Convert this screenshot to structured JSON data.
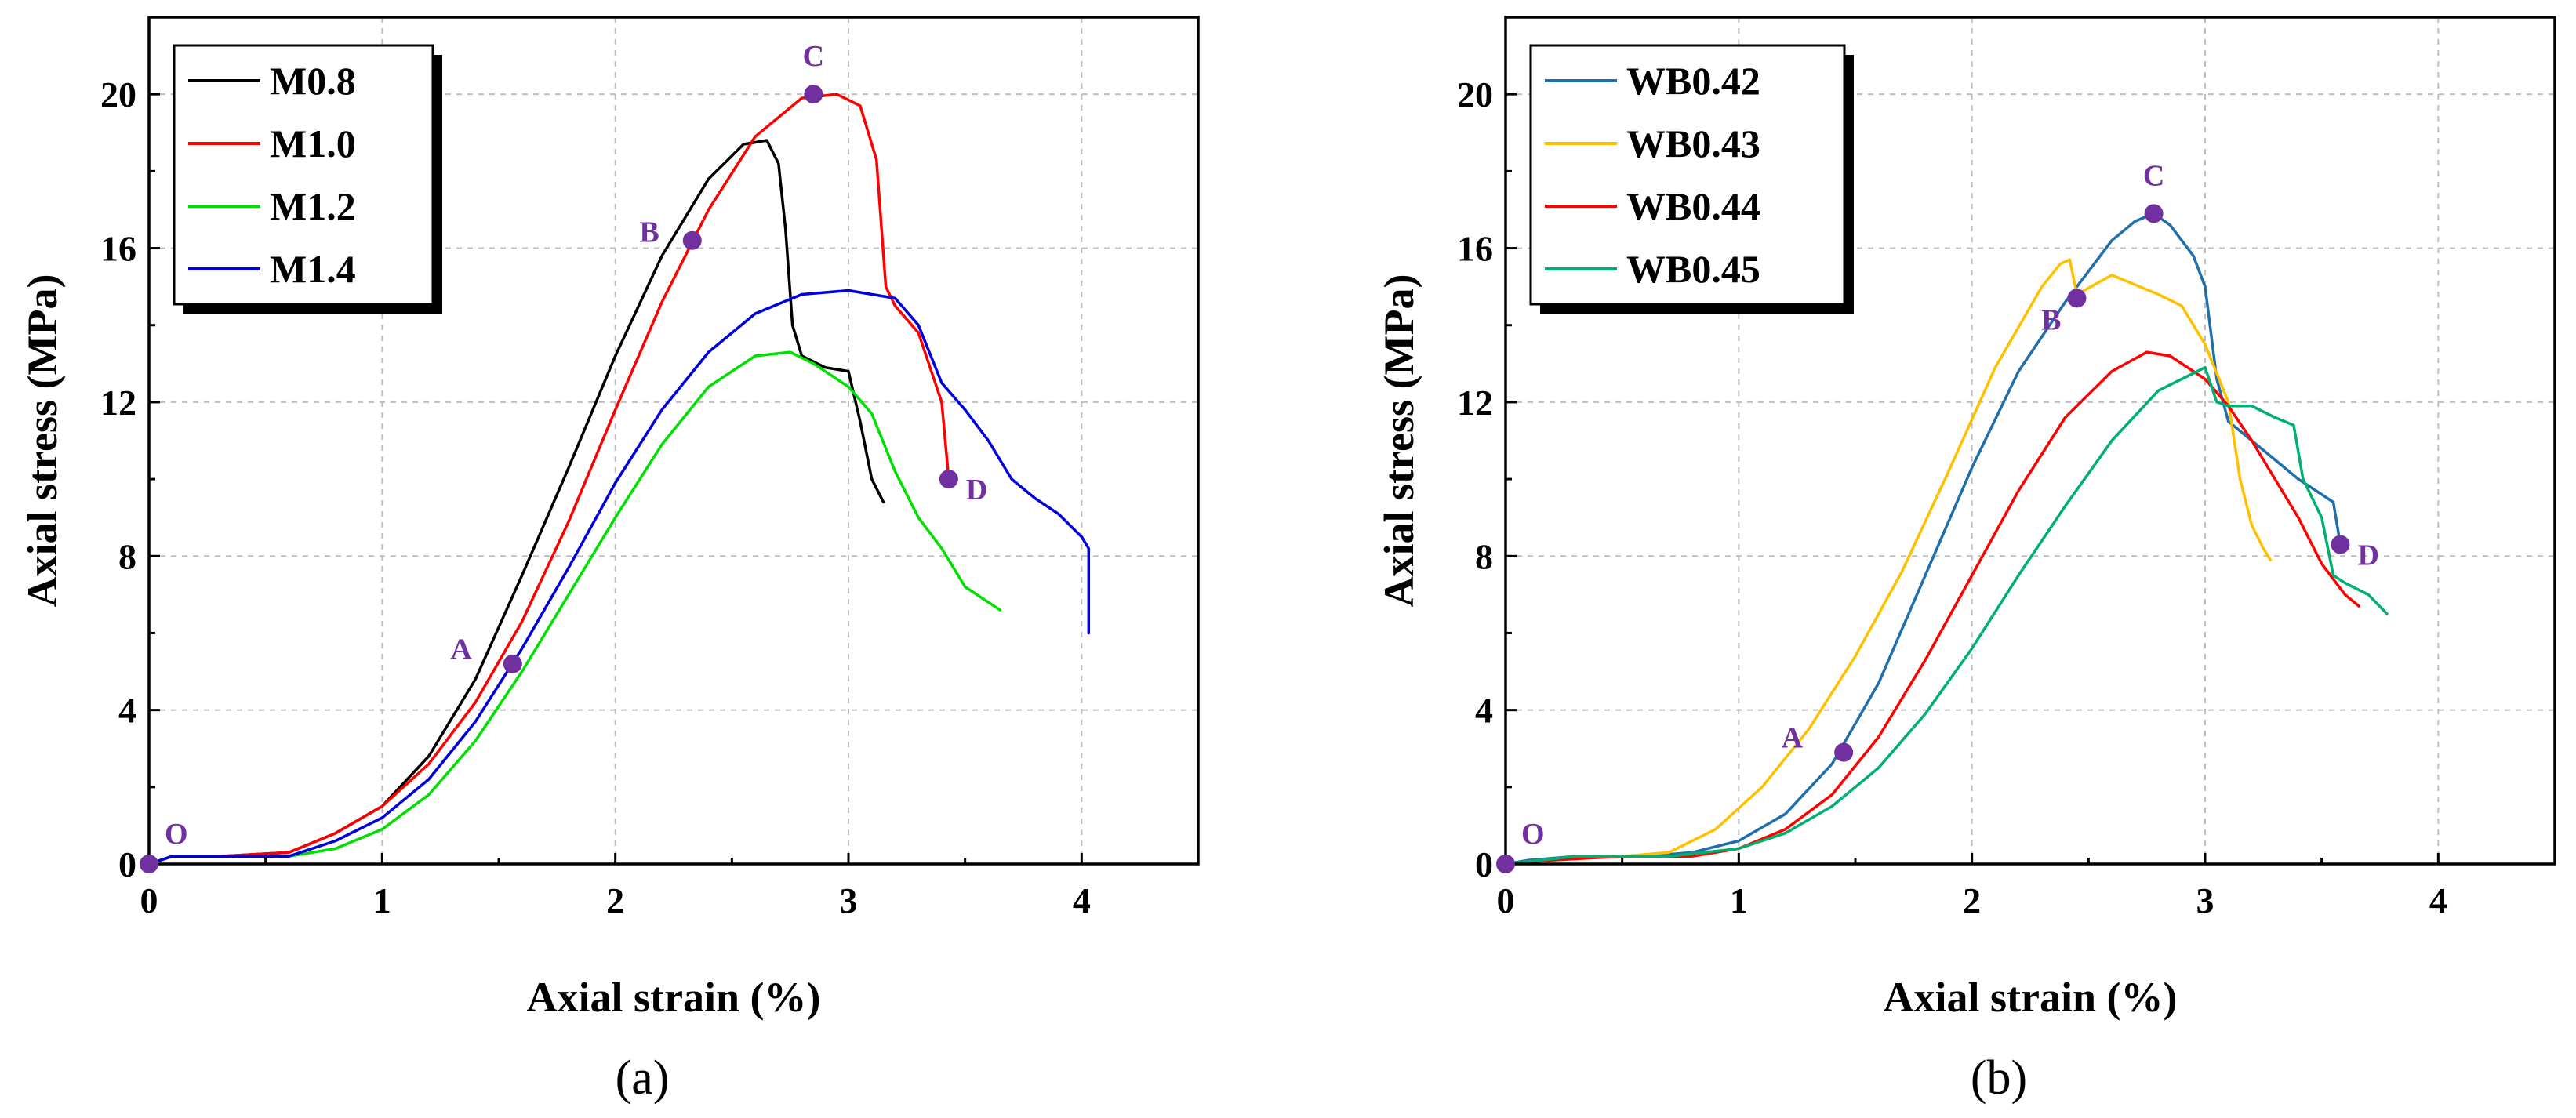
{
  "chart_data": [
    {
      "type": "line",
      "caption": "(a)",
      "xlabel": "Axial strain (%)",
      "ylabel": "Axial stress (MPa)",
      "xlim": [
        0,
        4.5
      ],
      "ylim": [
        0,
        22
      ],
      "xticks": [
        0,
        1,
        2,
        3,
        4
      ],
      "yticks": [
        0,
        4,
        8,
        12,
        16,
        20
      ],
      "grid": true,
      "legend_position": "top-left",
      "series": [
        {
          "name": "M0.8",
          "color": "#000000",
          "x": [
            0,
            0.1,
            0.3,
            0.6,
            0.8,
            1.0,
            1.2,
            1.4,
            1.6,
            1.8,
            2.0,
            2.2,
            2.4,
            2.55,
            2.65,
            2.7,
            2.73,
            2.76,
            2.8,
            2.9,
            3.0,
            3.05,
            3.1,
            3.15
          ],
          "y": [
            0,
            0.2,
            0.2,
            0.3,
            0.8,
            1.5,
            2.8,
            4.8,
            7.5,
            10.3,
            13.2,
            15.8,
            17.8,
            18.7,
            18.8,
            18.2,
            16.5,
            14.0,
            13.2,
            12.9,
            12.8,
            11.5,
            10.0,
            9.4
          ]
        },
        {
          "name": "M1.0",
          "color": "#ff0000",
          "x": [
            0,
            0.1,
            0.3,
            0.6,
            0.8,
            1.0,
            1.2,
            1.4,
            1.6,
            1.8,
            2.0,
            2.2,
            2.4,
            2.6,
            2.8,
            2.95,
            3.05,
            3.12,
            3.16,
            3.2,
            3.3,
            3.4,
            3.43
          ],
          "y": [
            0,
            0.2,
            0.2,
            0.3,
            0.8,
            1.5,
            2.6,
            4.2,
            6.3,
            8.9,
            11.8,
            14.6,
            17.0,
            18.9,
            19.9,
            20.0,
            19.7,
            18.3,
            15.0,
            14.5,
            13.8,
            12.0,
            10.0
          ]
        },
        {
          "name": "M1.2",
          "color": "#00e000",
          "x": [
            0,
            0.1,
            0.3,
            0.6,
            0.8,
            1.0,
            1.2,
            1.4,
            1.6,
            1.8,
            2.0,
            2.2,
            2.4,
            2.6,
            2.75,
            2.85,
            3.0,
            3.1,
            3.2,
            3.3,
            3.4,
            3.5,
            3.6,
            3.65
          ],
          "y": [
            0,
            0.2,
            0.2,
            0.2,
            0.4,
            0.9,
            1.8,
            3.2,
            5.0,
            7.0,
            9.0,
            10.9,
            12.4,
            13.2,
            13.3,
            13.0,
            12.4,
            11.7,
            10.2,
            9.0,
            8.2,
            7.2,
            6.8,
            6.6
          ]
        },
        {
          "name": "M1.4",
          "color": "#0000dd",
          "x": [
            0,
            0.1,
            0.3,
            0.6,
            0.8,
            1.0,
            1.2,
            1.4,
            1.6,
            1.8,
            2.0,
            2.2,
            2.4,
            2.6,
            2.8,
            3.0,
            3.2,
            3.3,
            3.4,
            3.5,
            3.6,
            3.7,
            3.8,
            3.9,
            4.0,
            4.03,
            4.03
          ],
          "y": [
            0,
            0.2,
            0.2,
            0.2,
            0.6,
            1.2,
            2.2,
            3.7,
            5.6,
            7.7,
            9.9,
            11.8,
            13.3,
            14.3,
            14.8,
            14.9,
            14.7,
            14.0,
            12.5,
            11.8,
            11.0,
            10.0,
            9.5,
            9.1,
            8.5,
            8.2,
            6.0
          ]
        }
      ],
      "points": [
        {
          "label": "O",
          "x": 0,
          "y": 0,
          "label_side": "upper-right"
        },
        {
          "label": "A",
          "x": 1.56,
          "y": 5.2,
          "label_side": "upper-left"
        },
        {
          "label": "B",
          "x": 2.33,
          "y": 16.2,
          "label_side": "left"
        },
        {
          "label": "C",
          "x": 2.85,
          "y": 20.0,
          "label_side": "above"
        },
        {
          "label": "D",
          "x": 3.43,
          "y": 10.0,
          "label_side": "right"
        }
      ]
    },
    {
      "type": "line",
      "caption": "(b)",
      "xlabel": "Axial strain (%)",
      "ylabel": "Axial stress (MPa)",
      "xlim": [
        0,
        4.5
      ],
      "ylim": [
        0,
        22
      ],
      "xticks": [
        0,
        1,
        2,
        3,
        4
      ],
      "yticks": [
        0,
        4,
        8,
        12,
        16,
        20
      ],
      "grid": true,
      "legend_position": "top-left",
      "series": [
        {
          "name": "WB0.42",
          "color": "#1f6fad",
          "x": [
            0,
            0.1,
            0.3,
            0.6,
            0.8,
            1.0,
            1.2,
            1.4,
            1.6,
            1.8,
            2.0,
            2.2,
            2.4,
            2.6,
            2.7,
            2.78,
            2.85,
            2.95,
            3.0,
            3.05,
            3.1,
            3.2,
            3.3,
            3.4,
            3.5,
            3.55,
            3.58
          ],
          "y": [
            0,
            0.1,
            0.2,
            0.2,
            0.3,
            0.6,
            1.3,
            2.6,
            4.7,
            7.5,
            10.3,
            12.8,
            14.6,
            16.2,
            16.7,
            16.9,
            16.6,
            15.8,
            15.0,
            12.6,
            11.5,
            11.0,
            10.5,
            10.0,
            9.6,
            9.4,
            8.3
          ]
        },
        {
          "name": "WB0.43",
          "color": "#ffc000",
          "x": [
            0,
            0.2,
            0.5,
            0.7,
            0.9,
            1.1,
            1.3,
            1.5,
            1.7,
            1.9,
            2.1,
            2.3,
            2.38,
            2.42,
            2.45,
            2.6,
            2.8,
            2.9,
            3.0,
            3.1,
            3.15,
            3.2,
            3.25,
            3.28
          ],
          "y": [
            0,
            0.1,
            0.2,
            0.3,
            0.9,
            2.0,
            3.5,
            5.4,
            7.6,
            10.2,
            12.9,
            15.0,
            15.6,
            15.7,
            14.8,
            15.3,
            14.8,
            14.5,
            13.5,
            12.0,
            10.0,
            8.8,
            8.2,
            7.9
          ]
        },
        {
          "name": "WB0.44",
          "color": "#ff0000",
          "x": [
            0,
            0.2,
            0.5,
            0.8,
            1.0,
            1.2,
            1.4,
            1.6,
            1.8,
            2.0,
            2.2,
            2.4,
            2.6,
            2.75,
            2.85,
            3.0,
            3.1,
            3.2,
            3.3,
            3.4,
            3.5,
            3.6,
            3.66
          ],
          "y": [
            0,
            0.1,
            0.2,
            0.2,
            0.4,
            0.9,
            1.8,
            3.3,
            5.3,
            7.5,
            9.7,
            11.6,
            12.8,
            13.3,
            13.2,
            12.6,
            11.9,
            11.0,
            10.0,
            9.0,
            7.8,
            7.0,
            6.7
          ]
        },
        {
          "name": "WB0.45",
          "color": "#00b070",
          "x": [
            0,
            0.3,
            0.7,
            1.0,
            1.2,
            1.4,
            1.6,
            1.8,
            2.0,
            2.2,
            2.4,
            2.6,
            2.8,
            3.0,
            3.05,
            3.1,
            3.2,
            3.3,
            3.38,
            3.42,
            3.5,
            3.55,
            3.6,
            3.7,
            3.78
          ],
          "y": [
            0,
            0.2,
            0.2,
            0.4,
            0.8,
            1.5,
            2.5,
            3.9,
            5.6,
            7.5,
            9.3,
            11.0,
            12.3,
            12.9,
            12.0,
            11.9,
            11.9,
            11.6,
            11.4,
            10.0,
            9.0,
            7.5,
            7.3,
            7.0,
            6.5
          ]
        }
      ],
      "points": [
        {
          "label": "O",
          "x": 0,
          "y": 0,
          "label_side": "upper-right"
        },
        {
          "label": "A",
          "x": 1.45,
          "y": 2.9,
          "label_side": "upper-left"
        },
        {
          "label": "B",
          "x": 2.45,
          "y": 14.7,
          "label_side": "lower-left"
        },
        {
          "label": "C",
          "x": 2.78,
          "y": 16.9,
          "label_side": "above"
        },
        {
          "label": "D",
          "x": 3.58,
          "y": 8.3,
          "label_side": "right"
        }
      ]
    }
  ]
}
